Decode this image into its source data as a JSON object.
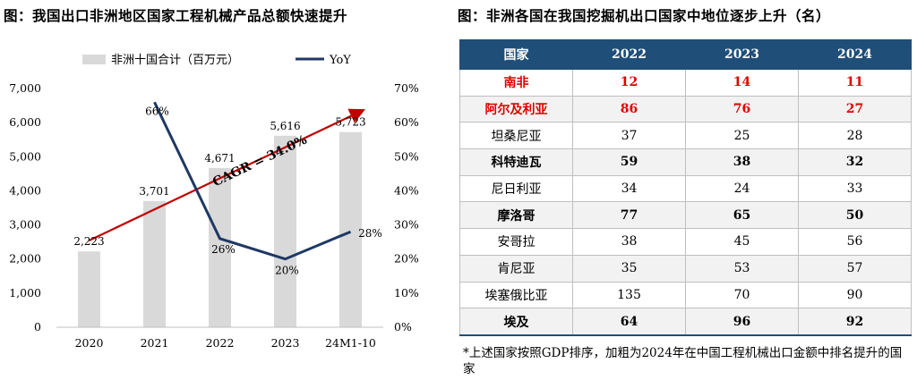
{
  "left_title": "图：我国出口非洲地区国家工程机械产品总额快速提升",
  "right_title": "图：非洲各国在我国挖掘机出口国家中地位逐步上升（名）",
  "chart_data": {
    "type": "bar+line",
    "categories": [
      "2020",
      "2021",
      "2022",
      "2023",
      "24M1-10"
    ],
    "series": [
      {
        "name": "非洲十国合计（百万元）",
        "type": "bar",
        "axis": "left",
        "values": [
          2223,
          3701,
          4671,
          5616,
          5723
        ],
        "labels": [
          "2,223",
          "3,701",
          "4,671",
          "5,616",
          "5,723"
        ]
      },
      {
        "name": "YoY",
        "type": "line",
        "axis": "right",
        "x": [
          "2021",
          "2022",
          "2023",
          "24M1-10"
        ],
        "values": [
          66,
          26,
          20,
          28
        ],
        "labels": [
          "66%",
          "26%",
          "20%",
          "28%"
        ]
      }
    ],
    "left_axis": {
      "ylim": [
        0,
        7000
      ],
      "ticks": [
        "0",
        "1,000",
        "2,000",
        "3,000",
        "4,000",
        "5,000",
        "6,000",
        "7,000"
      ]
    },
    "right_axis": {
      "ylim": [
        0,
        70
      ],
      "ticks": [
        "0%",
        "10%",
        "20%",
        "30%",
        "40%",
        "50%",
        "60%",
        "70%"
      ]
    },
    "annotation": {
      "text": "CAGR = 34.0%"
    },
    "colors": {
      "bar": "#d9d9d9",
      "line": "#1f3864",
      "arrow": "#c00000"
    }
  },
  "table": {
    "headers": [
      "国家",
      "2022",
      "2023",
      "2024"
    ],
    "rows": [
      {
        "country": "南非",
        "v2022": "12",
        "v2023": "14",
        "v2024": "11",
        "style": "red"
      },
      {
        "country": "阿尔及利亚",
        "v2022": "86",
        "v2023": "76",
        "v2024": "27",
        "style": "red"
      },
      {
        "country": "坦桑尼亚",
        "v2022": "37",
        "v2023": "25",
        "v2024": "28",
        "style": "normal"
      },
      {
        "country": "科特迪瓦",
        "v2022": "59",
        "v2023": "38",
        "v2024": "32",
        "style": "bold"
      },
      {
        "country": "尼日利亚",
        "v2022": "34",
        "v2023": "24",
        "v2024": "33",
        "style": "normal"
      },
      {
        "country": "摩洛哥",
        "v2022": "77",
        "v2023": "65",
        "v2024": "50",
        "style": "bold"
      },
      {
        "country": "安哥拉",
        "v2022": "38",
        "v2023": "45",
        "v2024": "56",
        "style": "normal"
      },
      {
        "country": "肯尼亚",
        "v2022": "35",
        "v2023": "53",
        "v2024": "57",
        "style": "normal"
      },
      {
        "country": "埃塞俄比亚",
        "v2022": "135",
        "v2023": "70",
        "v2024": "90",
        "style": "normal"
      },
      {
        "country": "埃及",
        "v2022": "64",
        "v2023": "96",
        "v2024": "92",
        "style": "bold"
      }
    ]
  },
  "note": "*上述国家按照GDP排序，加粗为2024年在中国工程机械出口金额中排名提升的国家"
}
